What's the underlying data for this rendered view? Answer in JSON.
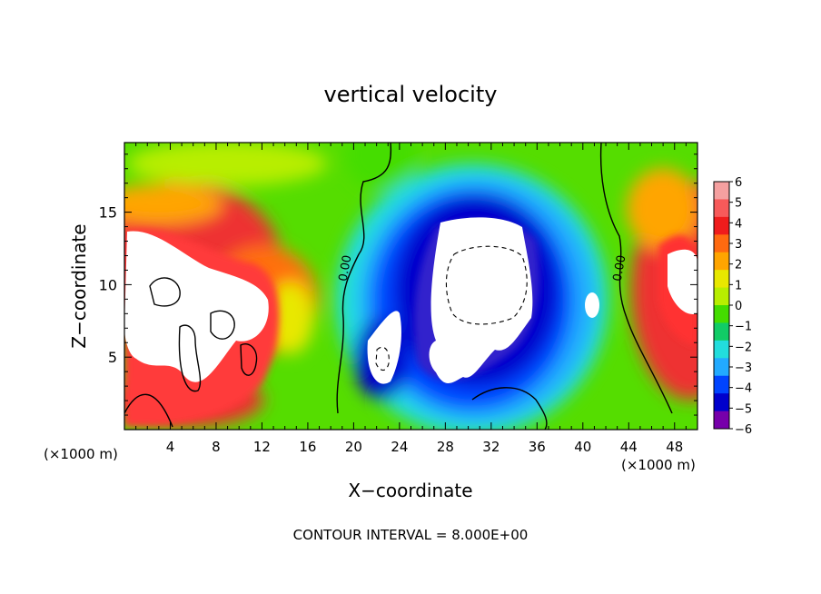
{
  "chart_data": {
    "type": "heatmap",
    "title": "vertical velocity",
    "xlabel": "X−coordinate",
    "ylabel": "Z−coordinate",
    "x_unit_left": "(×1000 m)",
    "x_unit_right": "(×1000 m)",
    "footer": "CONTOUR INTERVAL = 8.000E+00",
    "xlim": [
      0,
      50
    ],
    "ylim": [
      0,
      19.8
    ],
    "x_ticks": [
      "4",
      "8",
      "12",
      "16",
      "20",
      "24",
      "28",
      "32",
      "36",
      "40",
      "44",
      "48"
    ],
    "y_ticks": [
      "5",
      "10",
      "15"
    ],
    "contour_labels": [
      "0.00",
      "0.00"
    ],
    "colorbar": {
      "min": -6,
      "max": 6,
      "tick_labels": [
        "6",
        "5",
        "4",
        "3",
        "2",
        "1",
        "0",
        "−1",
        "−2",
        "−3",
        "−4",
        "−5",
        "−6"
      ],
      "colors": [
        "#f5a0a0",
        "#f75a5a",
        "#ef1c1c",
        "#ff6a10",
        "#ffa500",
        "#e8e800",
        "#b8ee00",
        "#44dd00",
        "#11cc66",
        "#22dddd",
        "#22aaff",
        "#0044ff",
        "#0000cc",
        "#7700aa"
      ]
    }
  }
}
